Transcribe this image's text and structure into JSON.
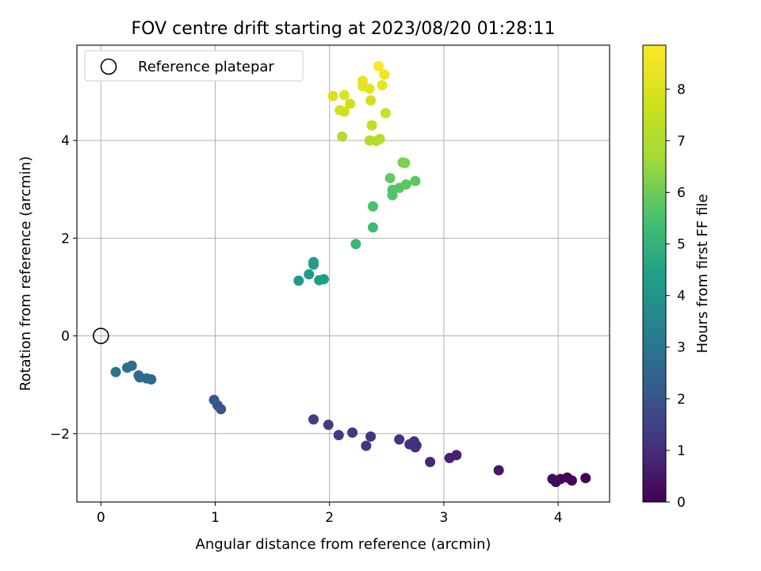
{
  "chart_data": {
    "type": "scatter",
    "title": "FOV centre drift starting at 2023/08/20 01:28:11",
    "xlabel": "Angular distance from reference (arcmin)",
    "ylabel": "Rotation from reference (arcmin)",
    "xlim": [
      -0.21,
      4.45
    ],
    "ylim": [
      -3.4,
      5.95
    ],
    "xticks": [
      0,
      1,
      2,
      3,
      4
    ],
    "yticks": [
      -2,
      0,
      2,
      4
    ],
    "grid": true,
    "colormap": "viridis",
    "colorbar": {
      "label": "Hours from first FF file",
      "range": [
        0,
        8.85
      ],
      "ticks": [
        0,
        1,
        2,
        3,
        4,
        5,
        6,
        7,
        8
      ]
    },
    "legend": {
      "position": "top-left",
      "entries": [
        {
          "label": "Reference platepar",
          "marker": "open-circle"
        }
      ]
    },
    "reference": {
      "x": 0,
      "y": 0
    },
    "points": [
      {
        "x": 4.24,
        "y": -2.91,
        "c": 0.0
      },
      {
        "x": 4.12,
        "y": -2.96,
        "c": 0.05
      },
      {
        "x": 4.08,
        "y": -2.9,
        "c": 0.1
      },
      {
        "x": 4.02,
        "y": -2.93,
        "c": 0.15
      },
      {
        "x": 3.98,
        "y": -2.99,
        "c": 0.2
      },
      {
        "x": 3.95,
        "y": -2.93,
        "c": 0.25
      },
      {
        "x": 3.48,
        "y": -2.75,
        "c": 0.5
      },
      {
        "x": 3.11,
        "y": -2.44,
        "c": 0.7
      },
      {
        "x": 3.05,
        "y": -2.5,
        "c": 0.75
      },
      {
        "x": 2.88,
        "y": -2.58,
        "c": 0.85
      },
      {
        "x": 2.76,
        "y": -2.24,
        "c": 0.95
      },
      {
        "x": 2.75,
        "y": -2.28,
        "c": 1.0
      },
      {
        "x": 2.74,
        "y": -2.16,
        "c": 1.02
      },
      {
        "x": 2.7,
        "y": -2.22,
        "c": 1.05
      },
      {
        "x": 2.61,
        "y": -2.12,
        "c": 1.1
      },
      {
        "x": 2.36,
        "y": -2.06,
        "c": 1.2
      },
      {
        "x": 2.32,
        "y": -2.25,
        "c": 1.25
      },
      {
        "x": 2.2,
        "y": -1.98,
        "c": 1.3
      },
      {
        "x": 2.08,
        "y": -2.03,
        "c": 1.35
      },
      {
        "x": 1.99,
        "y": -1.82,
        "c": 1.4
      },
      {
        "x": 1.86,
        "y": -1.71,
        "c": 1.45
      },
      {
        "x": 1.05,
        "y": -1.5,
        "c": 2.0
      },
      {
        "x": 1.02,
        "y": -1.42,
        "c": 2.05
      },
      {
        "x": 0.99,
        "y": -1.31,
        "c": 2.1
      },
      {
        "x": 0.44,
        "y": -0.89,
        "c": 2.6
      },
      {
        "x": 0.4,
        "y": -0.87,
        "c": 2.65
      },
      {
        "x": 0.34,
        "y": -0.85,
        "c": 2.7
      },
      {
        "x": 0.33,
        "y": -0.81,
        "c": 2.72
      },
      {
        "x": 0.27,
        "y": -0.61,
        "c": 2.8
      },
      {
        "x": 0.23,
        "y": -0.65,
        "c": 2.85
      },
      {
        "x": 0.13,
        "y": -0.74,
        "c": 2.9
      },
      {
        "x": 1.73,
        "y": 1.13,
        "c": 4.2
      },
      {
        "x": 1.82,
        "y": 1.26,
        "c": 4.25
      },
      {
        "x": 1.86,
        "y": 1.46,
        "c": 4.3
      },
      {
        "x": 1.86,
        "y": 1.51,
        "c": 4.32
      },
      {
        "x": 1.91,
        "y": 1.14,
        "c": 4.35
      },
      {
        "x": 1.95,
        "y": 1.16,
        "c": 4.4
      },
      {
        "x": 2.23,
        "y": 1.88,
        "c": 5.1
      },
      {
        "x": 2.38,
        "y": 2.22,
        "c": 5.3
      },
      {
        "x": 2.38,
        "y": 2.65,
        "c": 5.5
      },
      {
        "x": 2.55,
        "y": 2.88,
        "c": 5.6
      },
      {
        "x": 2.55,
        "y": 2.99,
        "c": 5.65
      },
      {
        "x": 2.61,
        "y": 3.03,
        "c": 5.7
      },
      {
        "x": 2.67,
        "y": 3.1,
        "c": 5.75
      },
      {
        "x": 2.75,
        "y": 3.17,
        "c": 5.8
      },
      {
        "x": 2.53,
        "y": 3.23,
        "c": 5.85
      },
      {
        "x": 2.64,
        "y": 3.55,
        "c": 6.15
      },
      {
        "x": 2.66,
        "y": 3.54,
        "c": 6.2
      },
      {
        "x": 2.11,
        "y": 4.08,
        "c": 7.0
      },
      {
        "x": 2.35,
        "y": 4.0,
        "c": 7.05
      },
      {
        "x": 2.41,
        "y": 3.99,
        "c": 7.1
      },
      {
        "x": 2.44,
        "y": 4.03,
        "c": 7.15
      },
      {
        "x": 2.37,
        "y": 4.31,
        "c": 7.4
      },
      {
        "x": 2.49,
        "y": 4.56,
        "c": 7.6
      },
      {
        "x": 2.09,
        "y": 4.62,
        "c": 7.7
      },
      {
        "x": 2.13,
        "y": 4.59,
        "c": 7.72
      },
      {
        "x": 2.18,
        "y": 4.75,
        "c": 7.75
      },
      {
        "x": 2.36,
        "y": 4.82,
        "c": 7.8
      },
      {
        "x": 2.03,
        "y": 4.91,
        "c": 8.0
      },
      {
        "x": 2.13,
        "y": 4.93,
        "c": 8.05
      },
      {
        "x": 2.35,
        "y": 5.06,
        "c": 8.2
      },
      {
        "x": 2.29,
        "y": 5.11,
        "c": 8.25
      },
      {
        "x": 2.29,
        "y": 5.22,
        "c": 8.3
      },
      {
        "x": 2.46,
        "y": 5.13,
        "c": 8.35
      },
      {
        "x": 2.48,
        "y": 5.35,
        "c": 8.5
      },
      {
        "x": 2.43,
        "y": 5.52,
        "c": 8.8
      }
    ]
  }
}
